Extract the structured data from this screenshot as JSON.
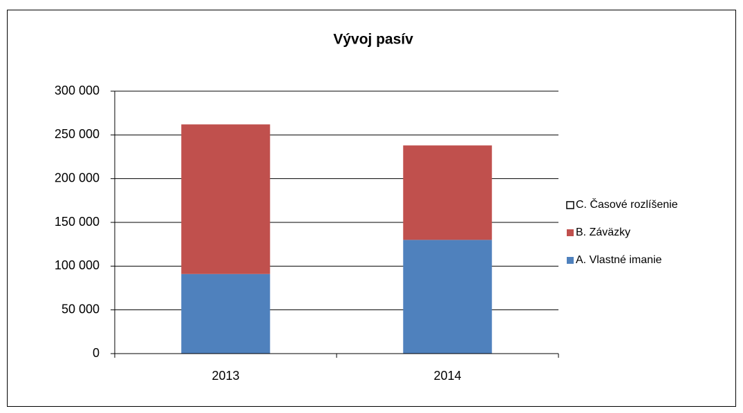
{
  "chart_data": {
    "type": "stacked_bar",
    "title": "Vývoj pasív",
    "categories": [
      "2013",
      "2014"
    ],
    "series": [
      {
        "name": "A. Vlastné imanie",
        "color": "#4f81bd",
        "values": [
          91000,
          130000
        ]
      },
      {
        "name": "B. Záväzky",
        "color": "#c0504d",
        "values": [
          171000,
          108000
        ]
      },
      {
        "name": "C. Časové rozlíšenie",
        "color": "#ffffff",
        "values": [
          0,
          0
        ]
      }
    ],
    "ylim": [
      0,
      300000
    ],
    "yticks": [
      0,
      {
        "value": 50000,
        "label": "50 000"
      },
      {
        "value": 100000,
        "label": "100 000"
      },
      {
        "value": 150000,
        "label": "150 000"
      },
      {
        "value": 200000,
        "label": "200 000"
      },
      {
        "value": 250000,
        "label": "250 000"
      },
      {
        "value": 300000,
        "label": "300 000"
      }
    ],
    "grid": true,
    "legend": "right"
  }
}
